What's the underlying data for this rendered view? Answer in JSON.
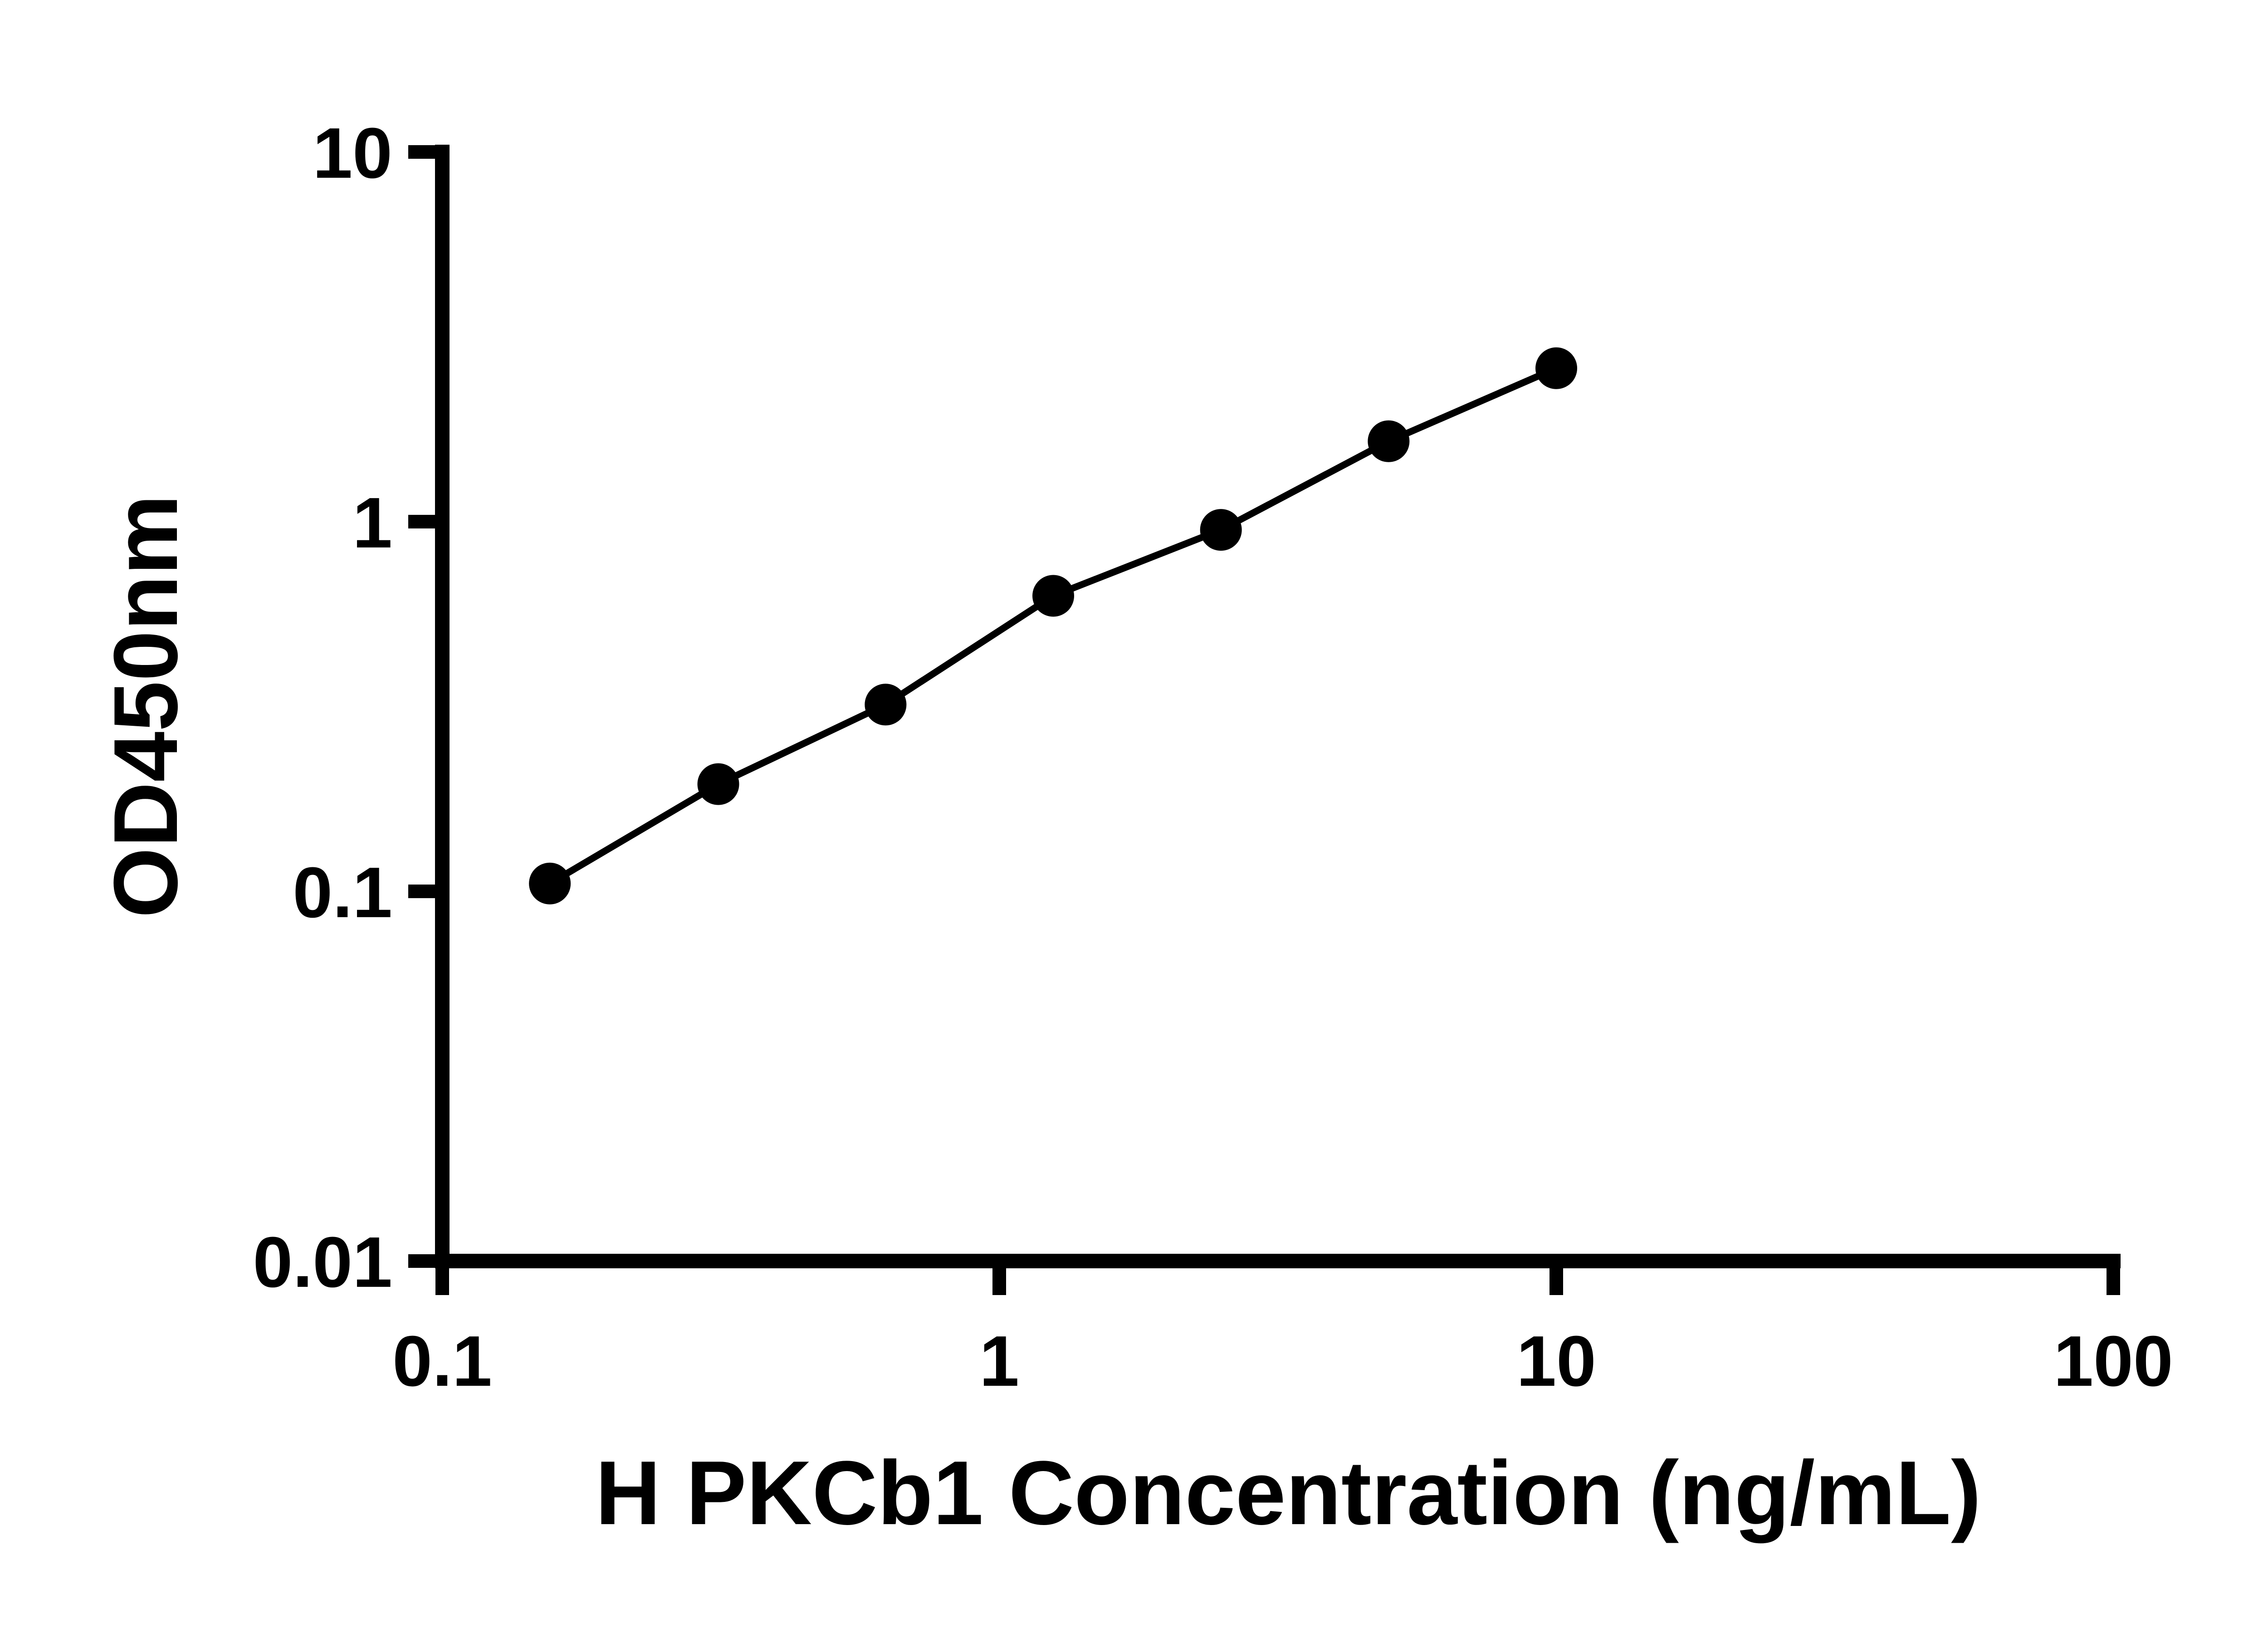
{
  "page": {
    "background_color": "#ffffff",
    "foreground_color": "#000000"
  },
  "chart_data": {
    "type": "line",
    "title": "",
    "xlabel": "H PKCb1 Concentration (ng/mL)",
    "ylabel": "OD450nm",
    "xscale": "log",
    "yscale": "log",
    "xlim": [
      0.1,
      100
    ],
    "ylim": [
      0.01,
      10
    ],
    "grid": false,
    "legend": false,
    "x": [
      0.156,
      0.313,
      0.625,
      1.25,
      2.5,
      5,
      10
    ],
    "y": [
      0.105,
      0.195,
      0.32,
      0.63,
      0.95,
      1.65,
      2.6
    ],
    "x_ticks": [
      {
        "value": 0.1,
        "label": "0.1"
      },
      {
        "value": 1,
        "label": "1"
      },
      {
        "value": 10,
        "label": "10"
      },
      {
        "value": 100,
        "label": "100"
      }
    ],
    "y_ticks": [
      {
        "value": 0.01,
        "label": "0.01"
      },
      {
        "value": 0.1,
        "label": "0.1"
      },
      {
        "value": 1,
        "label": "1"
      },
      {
        "value": 10,
        "label": "10"
      }
    ],
    "line_color": "#000000",
    "marker_color": "#000000",
    "axis_color": "#000000"
  }
}
